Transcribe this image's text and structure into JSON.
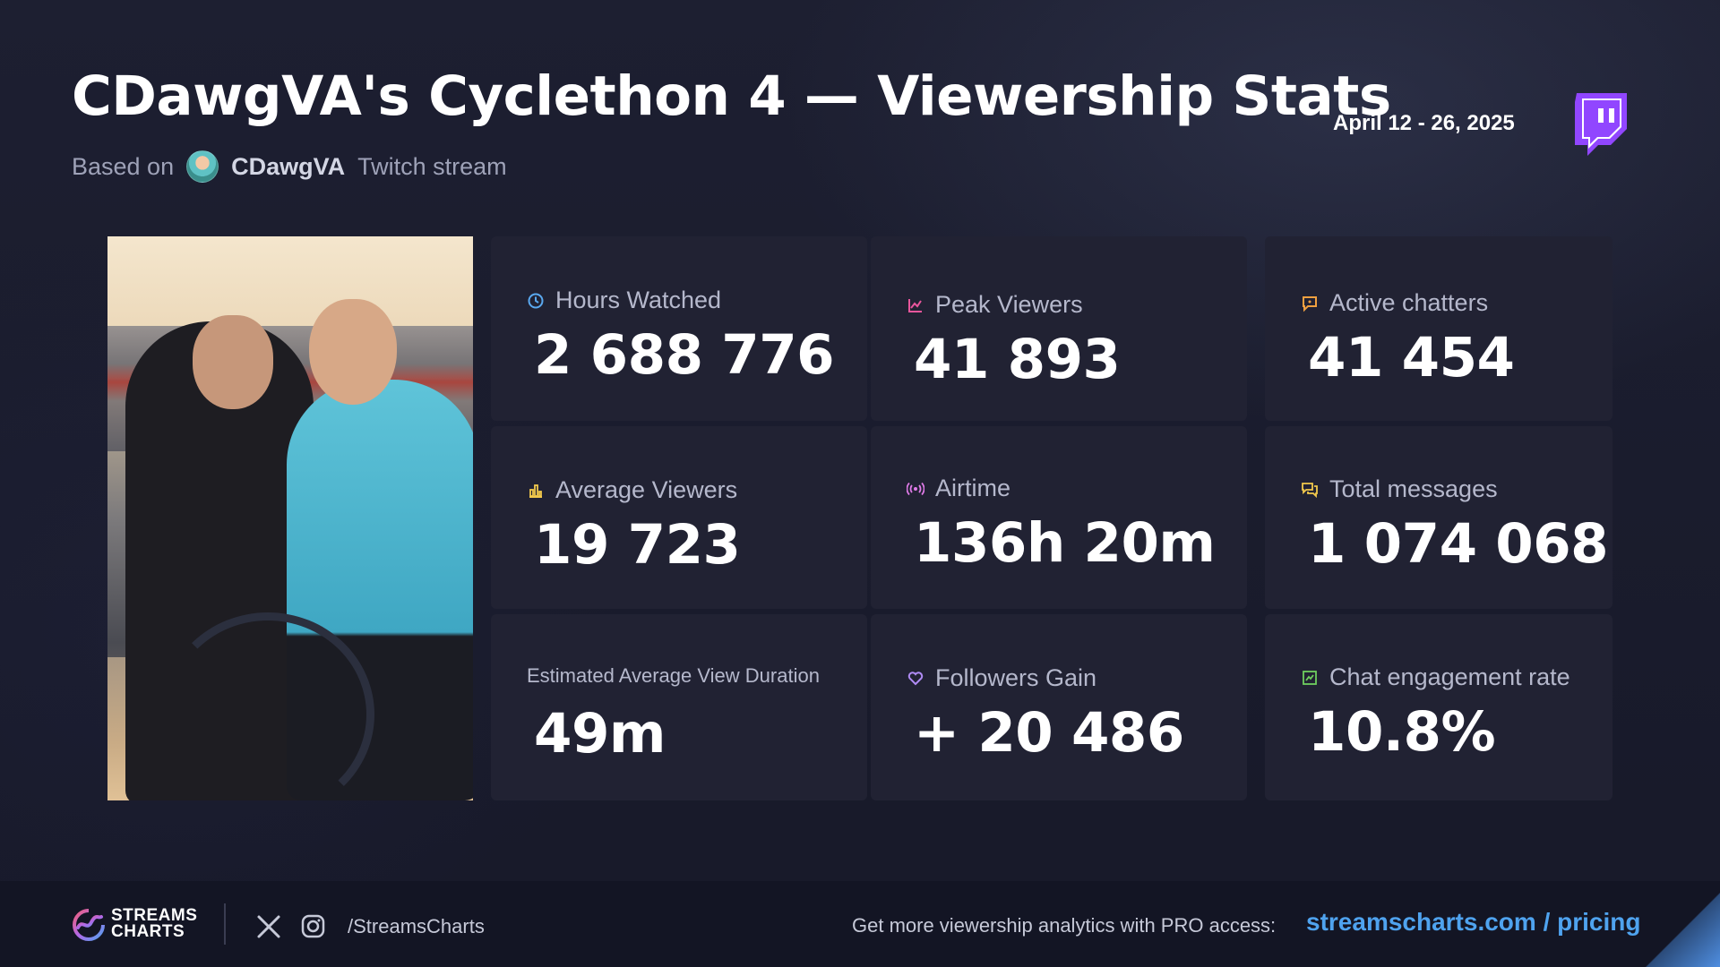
{
  "header": {
    "title": "CDawgVA's Cyclethon 4 — Viewership Stats",
    "based_on": "Based on",
    "channel": "CDawgVA",
    "platform_suffix": "Twitch stream",
    "date_range": "April 12 - 26, 2025",
    "platform_logo": "twitch-logo"
  },
  "stats": [
    {
      "label": "Hours Watched",
      "value": "2 688 776",
      "icon": "clock-icon",
      "icon_color": "#5aa9f0"
    },
    {
      "label": "Peak Viewers",
      "value": "41 893",
      "icon": "chart-icon",
      "icon_color": "#e8569c"
    },
    {
      "label": "Active chatters",
      "value": "41 454",
      "icon": "chat-icon",
      "icon_color": "#f0a040"
    },
    {
      "label": "Average Viewers",
      "value": "19 723",
      "icon": "bar-chart-icon",
      "icon_color": "#f2c94c"
    },
    {
      "label": "Airtime",
      "value": "136h 20m",
      "icon": "broadcast-icon",
      "icon_color": "#e07be8"
    },
    {
      "label": "Total messages",
      "value": "1 074 068",
      "icon": "messages-icon",
      "icon_color": "#f2c94c"
    },
    {
      "label": "Estimated Average View Duration",
      "value": "49m",
      "icon": "",
      "icon_color": ""
    },
    {
      "label": "Followers Gain",
      "value": "+ 20 486",
      "icon": "heart-icon",
      "icon_color": "#b08cf5"
    },
    {
      "label": "Chat engagement rate",
      "value": "10.8%",
      "icon": "engagement-icon",
      "icon_color": "#6fcf5e"
    }
  ],
  "footer": {
    "brand_line1": "STREAMS",
    "brand_line2": "CHARTS",
    "social_handle": "/StreamsCharts",
    "pro_text": "Get more viewership analytics with PRO access:",
    "pro_link": "streamscharts.com / pricing"
  },
  "colors": {
    "background": "#191b2b",
    "card": "#212233",
    "twitch": "#9146ff",
    "link": "#4fa3ef"
  }
}
